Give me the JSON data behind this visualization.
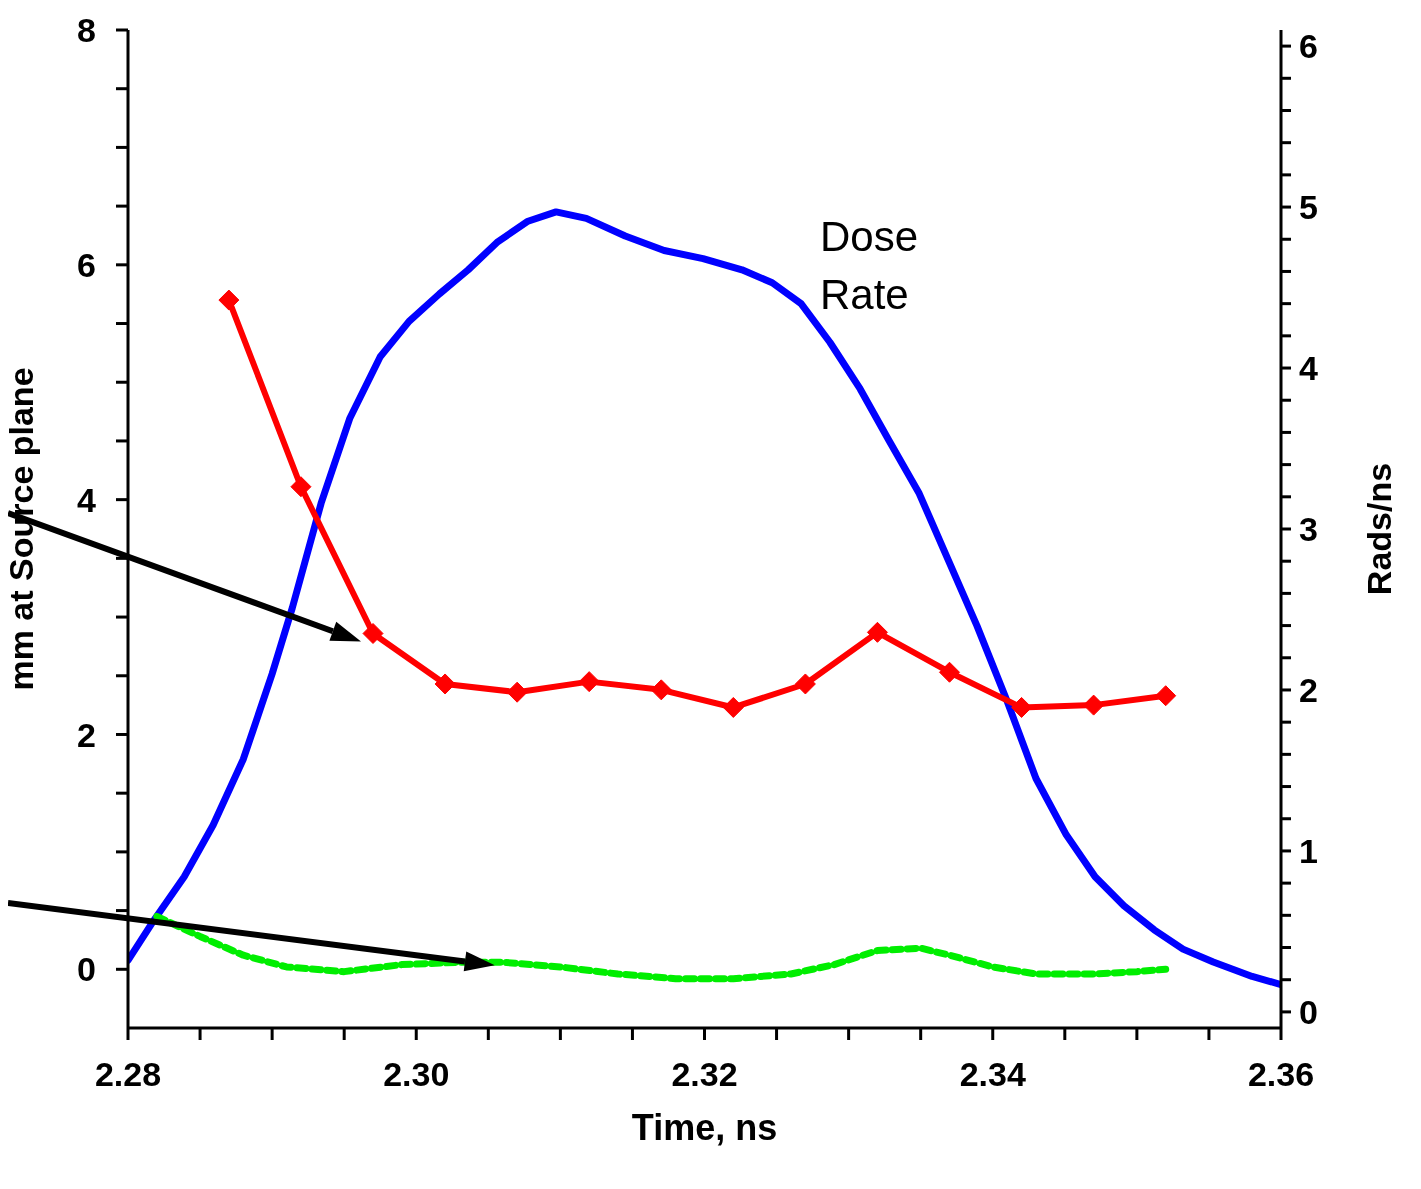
{
  "chart_data": {
    "type": "line",
    "xlabel": "Time, ns",
    "ylabel": "mm at Source plane",
    "y2label": "Rads/ns",
    "annotations": [
      "Dose Rate"
    ],
    "xlim": [
      2.28,
      2.36
    ],
    "xticks": [
      2.28,
      {
        "value": 2.285,
        "label": null
      },
      {
        "value": 2.29,
        "label": null
      },
      {
        "value": 2.295,
        "label": null
      },
      {
        "value": 2.3,
        "label": "2.30"
      },
      {
        "value": 2.305,
        "label": null
      },
      {
        "value": 2.31,
        "label": null
      },
      {
        "value": 2.315,
        "label": null
      },
      2.32,
      {
        "value": 2.325,
        "label": null
      },
      {
        "value": 2.33,
        "label": null
      },
      {
        "value": 2.335,
        "label": null
      },
      2.34,
      {
        "value": 2.345,
        "label": null
      },
      {
        "value": 2.35,
        "label": null
      },
      {
        "value": 2.355,
        "label": null
      },
      2.36
    ],
    "ylim": [
      -0.5,
      8
    ],
    "yticks": [
      0,
      {
        "value": 0.5,
        "label": null
      },
      {
        "value": 1,
        "label": null
      },
      {
        "value": 1.5,
        "label": null
      },
      2,
      {
        "value": 2.5,
        "label": null
      },
      {
        "value": 3,
        "label": null
      },
      {
        "value": 3.5,
        "label": null
      },
      4,
      {
        "value": 4.5,
        "label": null
      },
      {
        "value": 5,
        "label": null
      },
      {
        "value": 5.5,
        "label": null
      },
      6,
      {
        "value": 6.5,
        "label": null
      },
      {
        "value": 7,
        "label": null
      },
      {
        "value": 7.5,
        "label": null
      },
      8
    ],
    "y2lim": [
      -0.1,
      6.1
    ],
    "y2ticks": [
      0,
      {
        "value": 0.2,
        "label": null
      },
      {
        "value": 0.4,
        "label": null
      },
      {
        "value": 0.6,
        "label": null
      },
      {
        "value": 0.8,
        "label": null
      },
      1,
      {
        "value": 1.2,
        "label": null
      },
      {
        "value": 1.4,
        "label": null
      },
      {
        "value": 1.6,
        "label": null
      },
      {
        "value": 1.8,
        "label": null
      },
      2,
      {
        "value": 2.2,
        "label": null
      },
      {
        "value": 2.4,
        "label": null
      },
      {
        "value": 2.6,
        "label": null
      },
      {
        "value": 2.8,
        "label": null
      },
      3,
      {
        "value": 3.2,
        "label": null
      },
      {
        "value": 3.4,
        "label": null
      },
      {
        "value": 3.6,
        "label": null
      },
      {
        "value": 3.8,
        "label": null
      },
      4,
      {
        "value": 4.2,
        "label": null
      },
      {
        "value": 4.4,
        "label": null
      },
      {
        "value": 4.6,
        "label": null
      },
      {
        "value": 4.8,
        "label": null
      },
      5,
      {
        "value": 5.2,
        "label": null
      },
      {
        "value": 5.4,
        "label": null
      },
      {
        "value": 5.6,
        "label": null
      },
      {
        "value": 5.8,
        "label": null
      },
      6
    ],
    "series": [
      {
        "axis": "y2",
        "color": "#0000ff",
        "marker": "none",
        "line_style": "solid",
        "x": [
          2.28,
          2.2818,
          2.2839,
          2.2859,
          2.288,
          2.29,
          2.2914,
          2.2934,
          2.2954,
          2.2975,
          2.2995,
          2.3016,
          2.3036,
          2.3056,
          2.3077,
          2.3097,
          2.3118,
          2.3145,
          2.3172,
          2.3199,
          2.3226,
          2.3247,
          2.3267,
          2.3287,
          2.3308,
          2.3328,
          2.3349,
          2.3369,
          2.3389,
          2.341,
          2.343,
          2.3451,
          2.3471,
          2.3491,
          2.3512,
          2.3532,
          2.3553,
          2.358,
          2.36
        ],
        "values": [
          0.32,
          0.57,
          0.84,
          1.16,
          1.57,
          2.1,
          2.51,
          3.16,
          3.69,
          4.07,
          4.29,
          4.46,
          4.61,
          4.78,
          4.91,
          4.97,
          4.93,
          4.82,
          4.73,
          4.68,
          4.61,
          4.53,
          4.4,
          4.16,
          3.87,
          3.55,
          3.22,
          2.81,
          2.4,
          1.93,
          1.45,
          1.1,
          0.84,
          0.66,
          0.51,
          0.39,
          0.31,
          0.22,
          0.17
        ]
      },
      {
        "color": "#ff0000",
        "marker": "diamond",
        "line_style": "solid",
        "x": [
          2.287,
          2.292,
          2.297,
          2.302,
          2.307,
          2.312,
          2.317,
          2.322,
          2.327,
          2.332,
          2.337,
          2.342,
          2.347,
          2.352
        ],
        "values": [
          5.7,
          4.11,
          2.86,
          2.43,
          2.36,
          2.45,
          2.38,
          2.23,
          2.43,
          2.87,
          2.53,
          2.23,
          2.25,
          2.33
        ]
      },
      {
        "color": "#00ee00",
        "marker": "none",
        "line_style": "dashed",
        "x": [
          2.282,
          2.285,
          2.288,
          2.291,
          2.295,
          2.299,
          2.303,
          2.306,
          2.31,
          2.314,
          2.318,
          2.322,
          2.326,
          2.329,
          2.332,
          2.335,
          2.337,
          2.34,
          2.343,
          2.347,
          2.35,
          2.352
        ],
        "values": [
          0.45,
          0.28,
          0.12,
          0.02,
          -0.02,
          0.04,
          0.06,
          0.06,
          0.02,
          -0.04,
          -0.08,
          -0.08,
          -0.04,
          0.04,
          0.16,
          0.18,
          0.12,
          0.02,
          -0.04,
          -0.04,
          -0.02,
          0
        ]
      }
    ]
  }
}
